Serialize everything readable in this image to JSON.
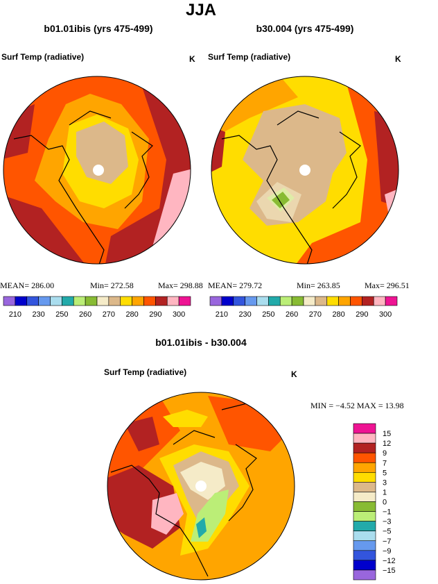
{
  "title": "JJA",
  "panels": [
    {
      "title": "b01.01ibis (yrs 475-499)",
      "variable": "Surf Temp (radiative)",
      "units": "K",
      "stats": [
        "MEAN= 286.00",
        "Min= 272.58",
        "Max= 298.88"
      ],
      "colorbar": {
        "colors": [
          "#9966dd",
          "#0000cc",
          "#3355dd",
          "#6699ee",
          "#aaddee",
          "#22aaaa",
          "#bbee77",
          "#88bb33",
          "#f5ebc8",
          "#dcb88a",
          "#ffdd00",
          "#ffa500",
          "#ff5500",
          "#b22222",
          "#ffb6c1",
          "#ee1493"
        ],
        "labels": [
          "210",
          "230",
          "250",
          "260",
          "270",
          "280",
          "290",
          "300"
        ]
      }
    },
    {
      "title": "b30.004 (yrs 475-499)",
      "variable": "Surf Temp (radiative)",
      "units": "K",
      "stats": [
        "MEAN= 279.72",
        "Min= 263.85",
        "Max= 296.51"
      ],
      "colorbar": {
        "colors": [
          "#9966dd",
          "#0000cc",
          "#3355dd",
          "#6699ee",
          "#aaddee",
          "#22aaaa",
          "#bbee77",
          "#88bb33",
          "#f5ebc8",
          "#dcb88a",
          "#ffdd00",
          "#ffa500",
          "#ff5500",
          "#b22222",
          "#ffb6c1",
          "#ee1493"
        ],
        "labels": [
          "210",
          "230",
          "250",
          "260",
          "270",
          "280",
          "290",
          "300"
        ]
      }
    }
  ],
  "difference": {
    "title": "b01.01ibis - b30.004",
    "variable": "Surf Temp (radiative)",
    "units": "K",
    "stats": "MIN =  −4.52 MAX =  13.98",
    "colorbar": {
      "colors": [
        "#ee1493",
        "#ffb6c1",
        "#b22222",
        "#ff5500",
        "#ffa500",
        "#ffdd00",
        "#dcb88a",
        "#f5ebc8",
        "#88bb33",
        "#bbee77",
        "#22aaaa",
        "#aaddee",
        "#6699ee",
        "#3355dd",
        "#0000cc",
        "#9966dd"
      ],
      "labels": [
        "15",
        "12",
        "9",
        "7",
        "5",
        "3",
        "1",
        "0",
        "−1",
        "−3",
        "−5",
        "−7",
        "−9",
        "−12",
        "−15"
      ]
    }
  }
}
